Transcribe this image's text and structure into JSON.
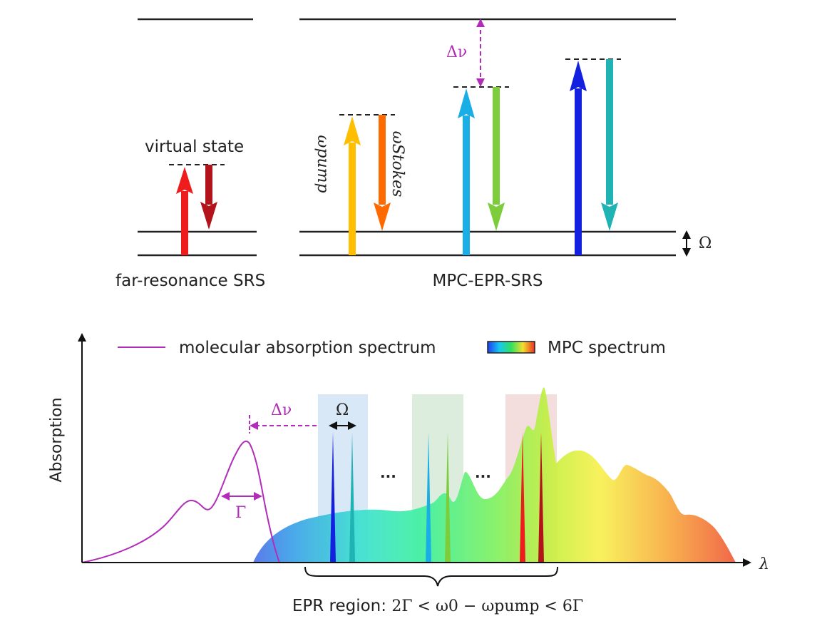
{
  "top": {
    "far_label": "far-resonance SRS",
    "virtual_state_label": "virtual state",
    "mpc_label": "MPC-EPR-SRS",
    "omega_pump": "ωpump",
    "omega_stokes": "ωStokes",
    "omega_level": "Ω",
    "delta_nu": "Δν"
  },
  "bottom": {
    "y_axis": "Absorption",
    "x_axis": "λ",
    "legend_molecular": "molecular absorption spectrum",
    "legend_mpc": "MPC spectrum",
    "gamma": "Γ",
    "omega_gap": "Ω",
    "delta_nu": "Δν",
    "ellipsis_1": "...",
    "ellipsis_2": "...",
    "epr_prefix": "EPR region: ",
    "epr_formula": "2Γ < ω0 − ωpump < 6Γ"
  },
  "colors": {
    "magenta": "#b12cb8",
    "far_pump": "#ee1c1c",
    "far_stokes": "#b3131a",
    "pair1_pump": "#ffbf00",
    "pair1_stokes": "#ff6a00",
    "pair2_pump": "#1aaee6",
    "pair2_stokes": "#7ccc3c",
    "pair3_pump": "#1320e0",
    "pair3_stokes": "#1fb3b3"
  }
}
